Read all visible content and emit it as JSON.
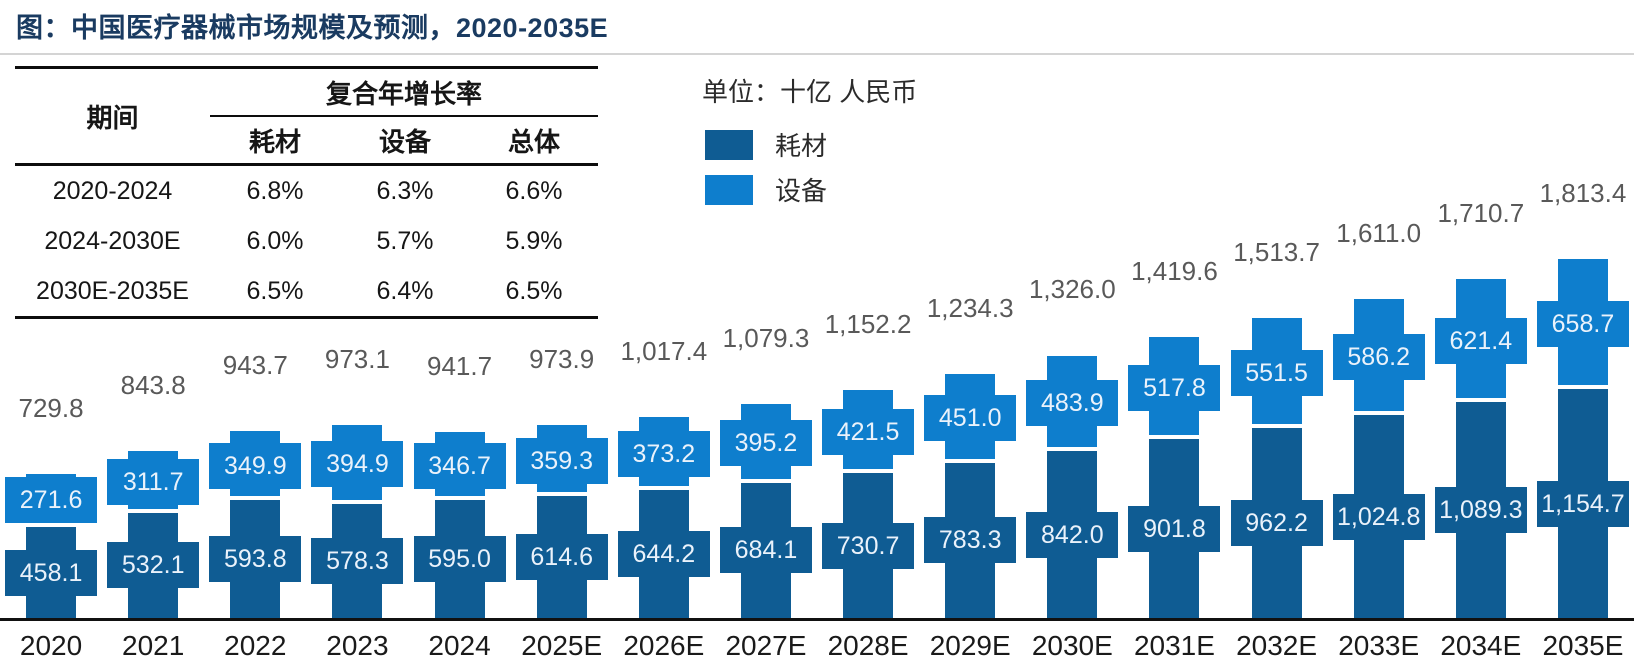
{
  "title": "图：中国医疗器械市场规模及预测，2020-2035E",
  "table": {
    "period_header": "期间",
    "cagr_header": "复合年增长率",
    "sub_headers": [
      "耗材",
      "设备",
      "总体"
    ],
    "rows": [
      {
        "period": "2020-2024",
        "values": [
          "6.8%",
          "6.3%",
          "6.6%"
        ]
      },
      {
        "period": "2024-2030E",
        "values": [
          "6.0%",
          "5.7%",
          "5.9%"
        ]
      },
      {
        "period": "2030E-2035E",
        "values": [
          "6.5%",
          "6.4%",
          "6.5%"
        ]
      }
    ]
  },
  "legend": {
    "unit_label": "单位：十亿 人民币",
    "items": [
      {
        "label": "耗材",
        "color": "#0F5C93"
      },
      {
        "label": "设备",
        "color": "#0E7ECD"
      }
    ]
  },
  "colors": {
    "consumables": "#0F5C93",
    "equipment": "#0E7ECD",
    "title": "#1A3B61",
    "total_label": "#595959",
    "value_text": "#EAF2FB",
    "axis": "#111111"
  },
  "chart_data": {
    "type": "bar",
    "stacked": true,
    "title": "中国医疗器械市场规模及预测 2020-2035E",
    "unit": "十亿 人民币",
    "xlabel": "",
    "ylabel": "",
    "legend_position": "top-left",
    "grid": false,
    "categories": [
      "2020",
      "2021",
      "2022",
      "2023",
      "2024",
      "2025E",
      "2026E",
      "2027E",
      "2028E",
      "2029E",
      "2030E",
      "2031E",
      "2032E",
      "2033E",
      "2034E",
      "2035E"
    ],
    "series": [
      {
        "name": "耗材",
        "color": "#0F5C93",
        "values": [
          458.1,
          532.1,
          593.8,
          578.3,
          595.0,
          614.6,
          644.2,
          684.1,
          730.7,
          783.3,
          842.0,
          901.8,
          962.2,
          1024.8,
          1089.3,
          1154.7
        ]
      },
      {
        "name": "设备",
        "color": "#0E7ECD",
        "values": [
          271.6,
          311.7,
          349.9,
          394.9,
          346.7,
          359.3,
          373.2,
          395.2,
          421.5,
          451.0,
          483.9,
          517.8,
          551.5,
          586.2,
          621.4,
          658.7
        ]
      }
    ],
    "totals": [
      729.8,
      843.8,
      943.7,
      973.1,
      941.7,
      973.9,
      1017.4,
      1079.3,
      1152.2,
      1234.3,
      1326.0,
      1419.6,
      1513.7,
      1611.0,
      1710.7,
      1813.4
    ]
  }
}
